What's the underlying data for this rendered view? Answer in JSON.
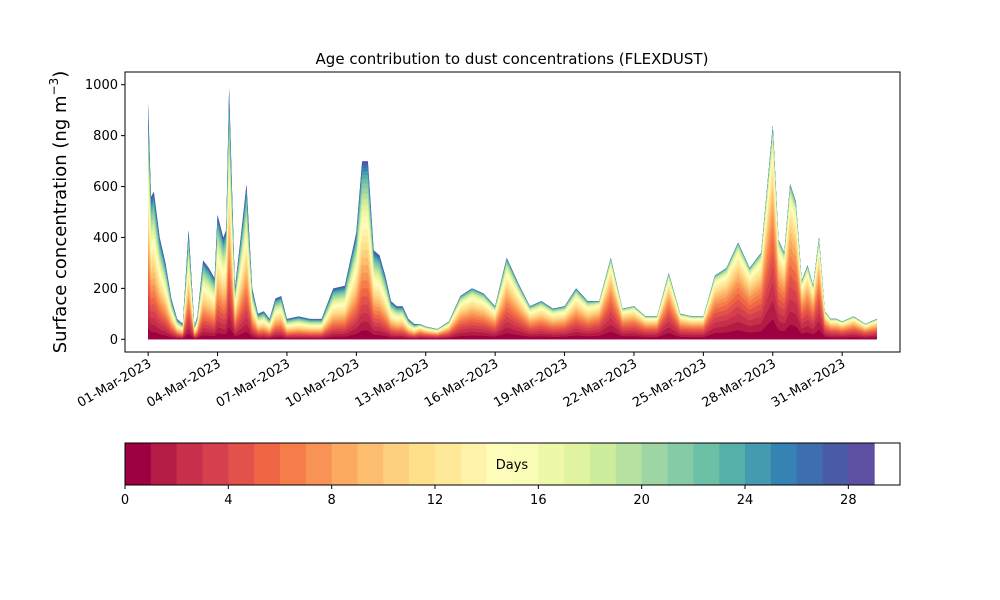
{
  "chart_data": {
    "type": "area",
    "title": "Age contribution to dust concentrations (FLEXDUST)",
    "xlabel": "",
    "ylabel": "Surface concentration (ng m",
    "ylabel_sup": "−3",
    "ylabel_close": ")",
    "xlim": [
      "2023-02-28T00:00",
      "2023-04-02T12:00"
    ],
    "ylim": [
      -50,
      1050
    ],
    "grid": false,
    "y_ticks": [
      0,
      200,
      400,
      600,
      800,
      1000
    ],
    "x_ticks": [
      "2023-03-01",
      "2023-03-04",
      "2023-03-07",
      "2023-03-10",
      "2023-03-13",
      "2023-03-16",
      "2023-03-19",
      "2023-03-22",
      "2023-03-25",
      "2023-03-28",
      "2023-03-31"
    ],
    "x_tick_labels": [
      "01-Mar-2023",
      "04-Mar-2023",
      "07-Mar-2023",
      "10-Mar-2023",
      "13-Mar-2023",
      "16-Mar-2023",
      "19-Mar-2023",
      "22-Mar-2023",
      "25-Mar-2023",
      "28-Mar-2023",
      "31-Mar-2023"
    ],
    "total_concentration": {
      "x": [
        "2023-03-01T00:00",
        "2023-03-01T03:00",
        "2023-03-01T06:00",
        "2023-03-01T12:00",
        "2023-03-01T18:00",
        "2023-03-02T00:00",
        "2023-03-02T06:00",
        "2023-03-02T12:00",
        "2023-03-02T18:00",
        "2023-03-03T00:00",
        "2023-03-03T03:00",
        "2023-03-03T09:00",
        "2023-03-03T15:00",
        "2023-03-03T21:00",
        "2023-03-04T00:00",
        "2023-03-04T06:00",
        "2023-03-04T09:00",
        "2023-03-04T12:00",
        "2023-03-04T18:00",
        "2023-03-05T00:00",
        "2023-03-05T06:00",
        "2023-03-05T12:00",
        "2023-03-05T18:00",
        "2023-03-06T00:00",
        "2023-03-06T06:00",
        "2023-03-06T12:00",
        "2023-03-06T18:00",
        "2023-03-07T00:00",
        "2023-03-07T12:00",
        "2023-03-08T00:00",
        "2023-03-08T12:00",
        "2023-03-09T00:00",
        "2023-03-09T12:00",
        "2023-03-10T00:00",
        "2023-03-10T06:00",
        "2023-03-10T12:00",
        "2023-03-10T18:00",
        "2023-03-11T00:00",
        "2023-03-11T06:00",
        "2023-03-11T12:00",
        "2023-03-11T18:00",
        "2023-03-12T00:00",
        "2023-03-12T06:00",
        "2023-03-12T12:00",
        "2023-03-12T18:00",
        "2023-03-13T00:00",
        "2023-03-13T12:00",
        "2023-03-14T00:00",
        "2023-03-14T12:00",
        "2023-03-15T00:00",
        "2023-03-15T12:00",
        "2023-03-16T00:00",
        "2023-03-16T12:00",
        "2023-03-17T00:00",
        "2023-03-17T12:00",
        "2023-03-18T00:00",
        "2023-03-18T12:00",
        "2023-03-19T00:00",
        "2023-03-19T12:00",
        "2023-03-20T00:00",
        "2023-03-20T12:00",
        "2023-03-21T00:00",
        "2023-03-21T12:00",
        "2023-03-22T00:00",
        "2023-03-22T12:00",
        "2023-03-23T00:00",
        "2023-03-23T12:00",
        "2023-03-24T00:00",
        "2023-03-24T12:00",
        "2023-03-25T00:00",
        "2023-03-25T12:00",
        "2023-03-26T00:00",
        "2023-03-26T12:00",
        "2023-03-27T00:00",
        "2023-03-27T12:00",
        "2023-03-28T00:00",
        "2023-03-28T06:00",
        "2023-03-28T12:00",
        "2023-03-28T18:00",
        "2023-03-29T00:00",
        "2023-03-29T06:00",
        "2023-03-29T12:00",
        "2023-03-29T18:00",
        "2023-03-30T00:00",
        "2023-03-30T06:00",
        "2023-03-30T12:00",
        "2023-03-30T18:00",
        "2023-03-31T00:00",
        "2023-03-31T12:00",
        "2023-04-01T00:00",
        "2023-04-01T12:00"
      ],
      "y": [
        930,
        560,
        580,
        400,
        300,
        160,
        80,
        60,
        430,
        50,
        90,
        310,
        280,
        240,
        490,
        400,
        430,
        990,
        200,
        400,
        610,
        200,
        100,
        110,
        80,
        160,
        170,
        80,
        90,
        80,
        80,
        200,
        210,
        420,
        700,
        700,
        350,
        330,
        250,
        150,
        130,
        130,
        80,
        60,
        60,
        50,
        40,
        70,
        170,
        200,
        180,
        130,
        320,
        220,
        130,
        150,
        120,
        130,
        200,
        150,
        150,
        320,
        120,
        130,
        90,
        90,
        260,
        100,
        90,
        90,
        250,
        280,
        380,
        280,
        340,
        840,
        390,
        340,
        610,
        540,
        230,
        290,
        210,
        400,
        110,
        80,
        80,
        70,
        90,
        60,
        80
      ]
    },
    "age_bands_days": [
      0,
      1,
      2,
      3,
      4,
      5,
      6,
      7,
      8,
      9,
      10,
      11,
      12,
      13,
      14,
      15,
      16,
      17,
      18,
      19,
      20,
      21,
      22,
      23,
      24,
      25,
      26,
      27,
      28,
      29,
      30
    ],
    "band_colors": [
      "#9e0142",
      "#b51c45",
      "#c72f4a",
      "#d6404e",
      "#e3524a",
      "#ef6645",
      "#f67c4a",
      "#f99355",
      "#fbaa60",
      "#fdbe6f",
      "#fdd07f",
      "#fee08b",
      "#fee99b",
      "#fff2ab",
      "#fffdbb",
      "#f8fcb4",
      "#eef8a8",
      "#e0f3a1",
      "#cdec9c",
      "#b6e1a0",
      "#9ed5a4",
      "#85cba6",
      "#6dc0a6",
      "#56b0aa",
      "#449aae",
      "#3682b3",
      "#3e6db0",
      "#4a5aa7",
      "#5e4fa2"
    ],
    "colorbar": {
      "label": "Days",
      "ticks": [
        0,
        4,
        8,
        12,
        16,
        20,
        24,
        28
      ],
      "range": [
        0,
        30
      ]
    },
    "colors": {
      "background": "#ffffff",
      "axis": "#000000",
      "base_band": "#9e0142",
      "oldest_band": "#5e4fa2"
    }
  }
}
